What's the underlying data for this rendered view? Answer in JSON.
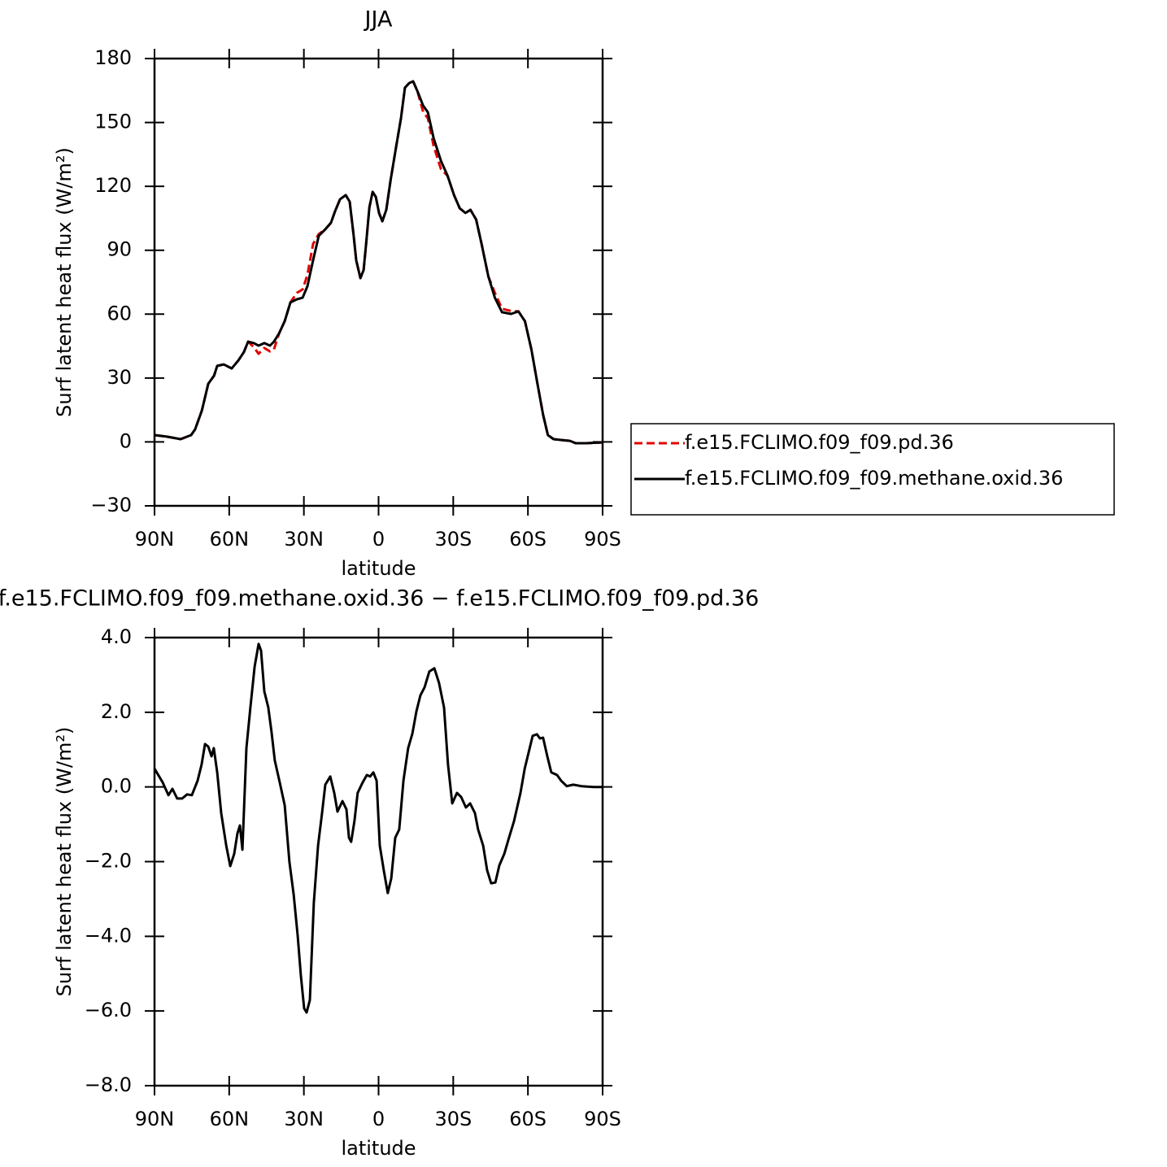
{
  "chart_data": [
    {
      "type": "line",
      "title": "JJA",
      "xlabel": "latitude",
      "ylabel": "Surf latent heat flux (W/m²)",
      "xlim": [
        90,
        -90
      ],
      "ylim": [
        -30,
        180
      ],
      "xticks": [
        {
          "value": 90,
          "label": "90N"
        },
        {
          "value": 60,
          "label": "60N"
        },
        {
          "value": 30,
          "label": "30N"
        },
        0,
        {
          "value": -30,
          "label": "30S"
        },
        {
          "value": -60,
          "label": "60S"
        },
        {
          "value": -90,
          "label": "90S"
        }
      ],
      "yticks": [
        {
          "value": -30,
          "label": "−30"
        },
        0,
        30,
        60,
        90,
        120,
        150,
        180
      ],
      "legend": "right",
      "x": [
        90,
        85.1,
        79.5,
        75.3,
        73.7,
        71,
        68.4,
        66.1,
        64.8,
        62.2,
        59,
        56.3,
        54.1,
        52.4,
        50.1,
        48.2,
        45.9,
        43.6,
        42,
        40,
        37.7,
        35.4,
        32.8,
        30.5,
        28.6,
        26.3,
        24,
        21.4,
        19.1,
        17.5,
        15.5,
        13.2,
        11.6,
        10,
        9,
        7.3,
        6,
        5,
        3.7,
        2.4,
        1.1,
        -0.2,
        -1.5,
        -3.1,
        -4.8,
        -7.1,
        -9,
        -10.6,
        -12.3,
        -13.9,
        -15.6,
        -17.9,
        -19.8,
        -22.1,
        -25.1,
        -27.7,
        -30.3,
        -32.6,
        -34.9,
        -36.9,
        -39.2,
        -41.4,
        -44.1,
        -46.7,
        -49.6,
        -53.2,
        -56.2,
        -58.8,
        -61.4,
        -63.7,
        -66.1,
        -68,
        -70.3,
        -73.6,
        -76.9,
        -79.2,
        -83.4,
        -90
      ],
      "series": [
        {
          "name": "f.e15.FCLIMO.f09_f09.pd.36",
          "color": "#e00000",
          "dash": true,
          "values": [
            3.2,
            2.5,
            1.3,
            3.2,
            5.9,
            14.7,
            27.3,
            31.1,
            35.7,
            36.4,
            34.5,
            38.3,
            42.2,
            47.1,
            44.5,
            41.4,
            44.1,
            42.5,
            43.5,
            50.9,
            56.7,
            65.5,
            70,
            71.6,
            78.4,
            93,
            97.6,
            99.8,
            102.9,
            108.2,
            113.9,
            115.9,
            112.8,
            96.8,
            85.3,
            76.9,
            80.7,
            93,
            110.1,
            117.4,
            115.1,
            107.5,
            103.6,
            109,
            122.7,
            138.8,
            152.1,
            166.3,
            168.5,
            169.3,
            164.7,
            155,
            152,
            139,
            128,
            125,
            115.9,
            109.7,
            107.5,
            109,
            104.4,
            92.9,
            77.7,
            70,
            62.5,
            61.5,
            61.3,
            56.7,
            43.3,
            28.1,
            12.8,
            3.2,
            1.3,
            0.9,
            0.5,
            -0.6,
            -0.6,
            -0.2
          ]
        },
        {
          "name": "f.e15.FCLIMO.f09_f09.methane.oxid.36",
          "color": "#000000",
          "dash": false,
          "values": [
            3.2,
            2.5,
            1.3,
            3.2,
            5.9,
            14.7,
            27.3,
            31.1,
            35.7,
            36.4,
            34.5,
            38.3,
            42.2,
            47.1,
            46.4,
            45.2,
            46.4,
            45.2,
            47.1,
            50.9,
            56.7,
            65.5,
            67,
            67.7,
            73.1,
            85.3,
            96.8,
            99.8,
            102.9,
            108.2,
            113.9,
            115.9,
            112.8,
            96.8,
            85.3,
            76.9,
            80.7,
            93,
            110.1,
            117.4,
            115.1,
            107.5,
            103.6,
            109,
            122.7,
            138.8,
            152.1,
            166.3,
            168.5,
            169.3,
            164.7,
            157.9,
            154.8,
            142.6,
            131.9,
            125,
            115.9,
            109.7,
            107.5,
            109,
            104.4,
            92.9,
            77.7,
            67.7,
            60.9,
            60.1,
            61.3,
            56.7,
            43.3,
            28.1,
            12.8,
            3.2,
            1.3,
            0.9,
            0.5,
            -0.6,
            -0.6,
            -0.2
          ]
        }
      ]
    },
    {
      "type": "line",
      "title": "f.e15.FCLIMO.f09_f09.methane.oxid.36 − f.e15.FCLIMO.f09_f09.pd.36",
      "xlabel": "latitude",
      "ylabel": "Surf latent heat flux (W/m²)",
      "xlim": [
        90,
        -90
      ],
      "ylim": [
        -8,
        4
      ],
      "xticks": [
        {
          "value": 90,
          "label": "90N"
        },
        {
          "value": 60,
          "label": "60N"
        },
        {
          "value": 30,
          "label": "30N"
        },
        0,
        {
          "value": -30,
          "label": "30S"
        },
        {
          "value": -60,
          "label": "60S"
        },
        {
          "value": -90,
          "label": "90S"
        }
      ],
      "yticks": [
        {
          "value": -8,
          "label": "−8.0"
        },
        {
          "value": -6,
          "label": "−6.0"
        },
        {
          "value": -4,
          "label": "−4.0"
        },
        {
          "value": -2,
          "label": "−2.0"
        },
        {
          "value": 0,
          "label": "0.0"
        },
        {
          "value": 2,
          "label": "2.0"
        },
        {
          "value": 4,
          "label": "4.0"
        }
      ],
      "x": [
        90,
        86.7,
        84.4,
        82.8,
        80.9,
        78.9,
        76.9,
        75,
        72.7,
        71.1,
        69.7,
        68.4,
        67.1,
        66.2,
        64.8,
        63.2,
        61.2,
        59.6,
        58,
        56.7,
        55.7,
        54.7,
        53.1,
        51.5,
        49.8,
        48.2,
        47.2,
        45.9,
        44.3,
        43,
        41.7,
        39.7,
        37.7,
        35.8,
        34.1,
        32.5,
        31.2,
        29.9,
        28.9,
        27.6,
        26,
        24.3,
        22.7,
        21.4,
        19.4,
        17.8,
        16.5,
        14.5,
        12.9,
        11.9,
        11,
        9.7,
        8.4,
        6.4,
        4.7,
        3.4,
        2.1,
        0.8,
        -0.5,
        -2.1,
        -3.7,
        -5.1,
        -6.7,
        -8.3,
        -10,
        -11.9,
        -13.6,
        -15.2,
        -16.8,
        -18.5,
        -20.4,
        -22.4,
        -24.3,
        -26.3,
        -27.9,
        -29.6,
        -31.5,
        -33.2,
        -35.1,
        -36.8,
        -38.7,
        -40,
        -42,
        -43.6,
        -45.2,
        -46.9,
        -48.5,
        -50.5,
        -52.4,
        -54.4,
        -57,
        -58.7,
        -60.3,
        -61.9,
        -63.6,
        -64.8,
        -66.1,
        -67.8,
        -69.4,
        -71.7,
        -73.3,
        -75.6,
        -78.2,
        -81.5,
        -86.4,
        -90
      ],
      "series": [
        {
          "color": "#000000",
          "dash": false,
          "values": [
            0.49,
            0.12,
            -0.22,
            -0.05,
            -0.31,
            -0.31,
            -0.2,
            -0.22,
            0.17,
            0.6,
            1.15,
            1.08,
            0.82,
            1.04,
            0.39,
            -0.7,
            -1.57,
            -2.12,
            -1.79,
            -1.25,
            -1.03,
            -1.68,
            1.04,
            2.13,
            3.22,
            3.83,
            3.65,
            2.56,
            2.13,
            1.47,
            0.71,
            0.12,
            -0.49,
            -2.01,
            -2.88,
            -3.97,
            -5.06,
            -5.93,
            -6.04,
            -5.71,
            -3.1,
            -1.57,
            -0.7,
            0.06,
            0.28,
            -0.16,
            -0.66,
            -0.38,
            -0.6,
            -1.36,
            -1.47,
            -0.92,
            -0.16,
            0.12,
            0.32,
            0.28,
            0.39,
            0.17,
            -1.57,
            -2.23,
            -2.84,
            -2.45,
            -1.36,
            -1.14,
            0.17,
            1.04,
            1.43,
            2.02,
            2.45,
            2.67,
            3.09,
            3.18,
            2.78,
            2.13,
            0.6,
            -0.44,
            -0.16,
            -0.27,
            -0.55,
            -0.44,
            -0.7,
            -1.14,
            -1.57,
            -2.23,
            -2.58,
            -2.56,
            -2.1,
            -1.79,
            -1.36,
            -0.92,
            -0.16,
            0.49,
            0.93,
            1.37,
            1.41,
            1.3,
            1.32,
            0.82,
            0.39,
            0.32,
            0.17,
            0.02,
            0.06,
            0.02,
            0,
            0
          ]
        }
      ]
    }
  ]
}
